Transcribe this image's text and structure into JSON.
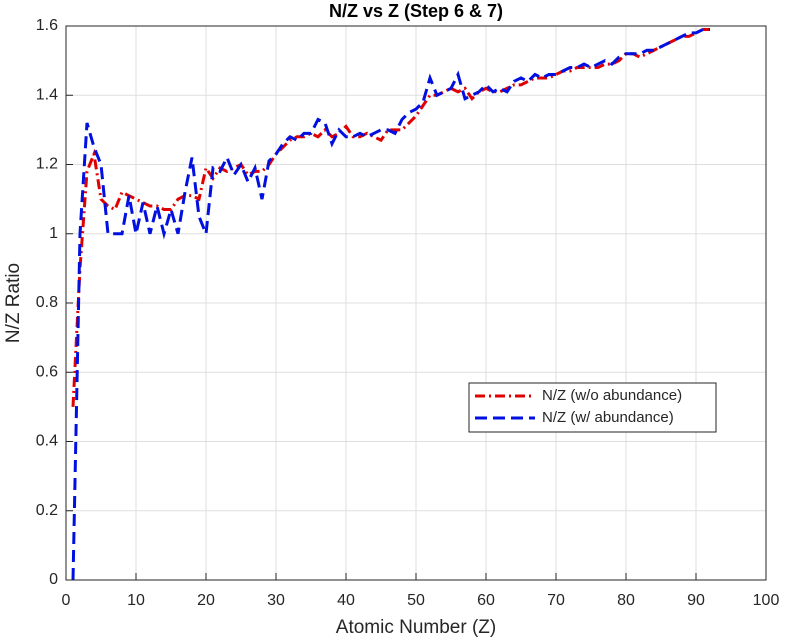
{
  "chart_data": {
    "type": "line",
    "title": "N/Z vs Z (Step 6 & 7)",
    "x_label": "Atomic Number (Z)",
    "y_label": "N/Z Ratio",
    "x": [
      1,
      2,
      3,
      4,
      5,
      6,
      7,
      8,
      9,
      10,
      11,
      12,
      13,
      14,
      15,
      16,
      17,
      18,
      19,
      20,
      21,
      22,
      23,
      24,
      25,
      26,
      27,
      28,
      29,
      30,
      31,
      32,
      33,
      34,
      35,
      36,
      37,
      38,
      39,
      40,
      41,
      42,
      43,
      44,
      45,
      46,
      47,
      48,
      49,
      50,
      51,
      52,
      53,
      54,
      55,
      56,
      57,
      58,
      59,
      60,
      61,
      62,
      63,
      64,
      65,
      66,
      67,
      68,
      69,
      70,
      71,
      72,
      73,
      74,
      75,
      76,
      77,
      78,
      79,
      80,
      81,
      82,
      83,
      84,
      85,
      86,
      87,
      88,
      89,
      90,
      91,
      92
    ],
    "series": [
      {
        "name": "N/Z (w/o abundance)",
        "color": "#e00000",
        "line_style": "dashdot",
        "values": [
          0.5,
          0.9,
          1.18,
          1.23,
          1.1,
          1.08,
          1.07,
          1.12,
          1.11,
          1.1,
          1.09,
          1.08,
          1.08,
          1.07,
          1.07,
          1.1,
          1.11,
          1.11,
          1.1,
          1.19,
          1.16,
          1.19,
          1.18,
          1.19,
          1.2,
          1.17,
          1.18,
          1.18,
          1.2,
          1.23,
          1.25,
          1.27,
          1.28,
          1.28,
          1.29,
          1.28,
          1.3,
          1.28,
          1.29,
          1.31,
          1.28,
          1.28,
          1.29,
          1.28,
          1.27,
          1.3,
          1.3,
          1.3,
          1.32,
          1.34,
          1.37,
          1.4,
          1.4,
          1.41,
          1.42,
          1.41,
          1.42,
          1.39,
          1.41,
          1.42,
          1.41,
          1.41,
          1.42,
          1.43,
          1.43,
          1.44,
          1.45,
          1.45,
          1.45,
          1.46,
          1.47,
          1.47,
          1.48,
          1.48,
          1.48,
          1.48,
          1.49,
          1.49,
          1.5,
          1.52,
          1.52,
          1.51,
          1.52,
          1.53,
          1.54,
          1.55,
          1.56,
          1.57,
          1.57,
          1.58,
          1.59,
          1.59
        ]
      },
      {
        "name": "N/Z (w/ abundance)",
        "color": "#0010e0",
        "line_style": "dashed",
        "values": [
          0,
          1.0,
          1.32,
          1.25,
          1.2,
          1.0,
          1.0,
          1.0,
          1.11,
          1.0,
          1.09,
          1.0,
          1.08,
          1.0,
          1.07,
          1.0,
          1.12,
          1.22,
          1.05,
          1.0,
          1.19,
          1.18,
          1.22,
          1.17,
          1.2,
          1.15,
          1.19,
          1.1,
          1.21,
          1.23,
          1.26,
          1.28,
          1.27,
          1.29,
          1.29,
          1.33,
          1.32,
          1.26,
          1.3,
          1.28,
          1.28,
          1.29,
          1.28,
          1.29,
          1.3,
          1.3,
          1.29,
          1.33,
          1.35,
          1.36,
          1.38,
          1.45,
          1.4,
          1.41,
          1.42,
          1.46,
          1.39,
          1.4,
          1.41,
          1.43,
          1.41,
          1.42,
          1.41,
          1.44,
          1.45,
          1.44,
          1.46,
          1.45,
          1.46,
          1.46,
          1.47,
          1.48,
          1.48,
          1.49,
          1.48,
          1.49,
          1.5,
          1.49,
          1.51,
          1.52,
          1.52,
          1.52,
          1.53,
          1.53,
          1.54,
          1.55,
          1.56,
          1.57,
          1.58,
          1.58,
          1.59,
          1.59
        ]
      }
    ],
    "xlim": [
      0,
      100
    ],
    "xticks": [
      0,
      10,
      20,
      30,
      40,
      50,
      60,
      70,
      80,
      90,
      100
    ],
    "ylim": [
      0,
      1.6
    ],
    "yticks": [
      0,
      0.2,
      0.4,
      0.6,
      0.8,
      1,
      1.2,
      1.4,
      1.6
    ],
    "grid": true,
    "legend_position": "east"
  }
}
